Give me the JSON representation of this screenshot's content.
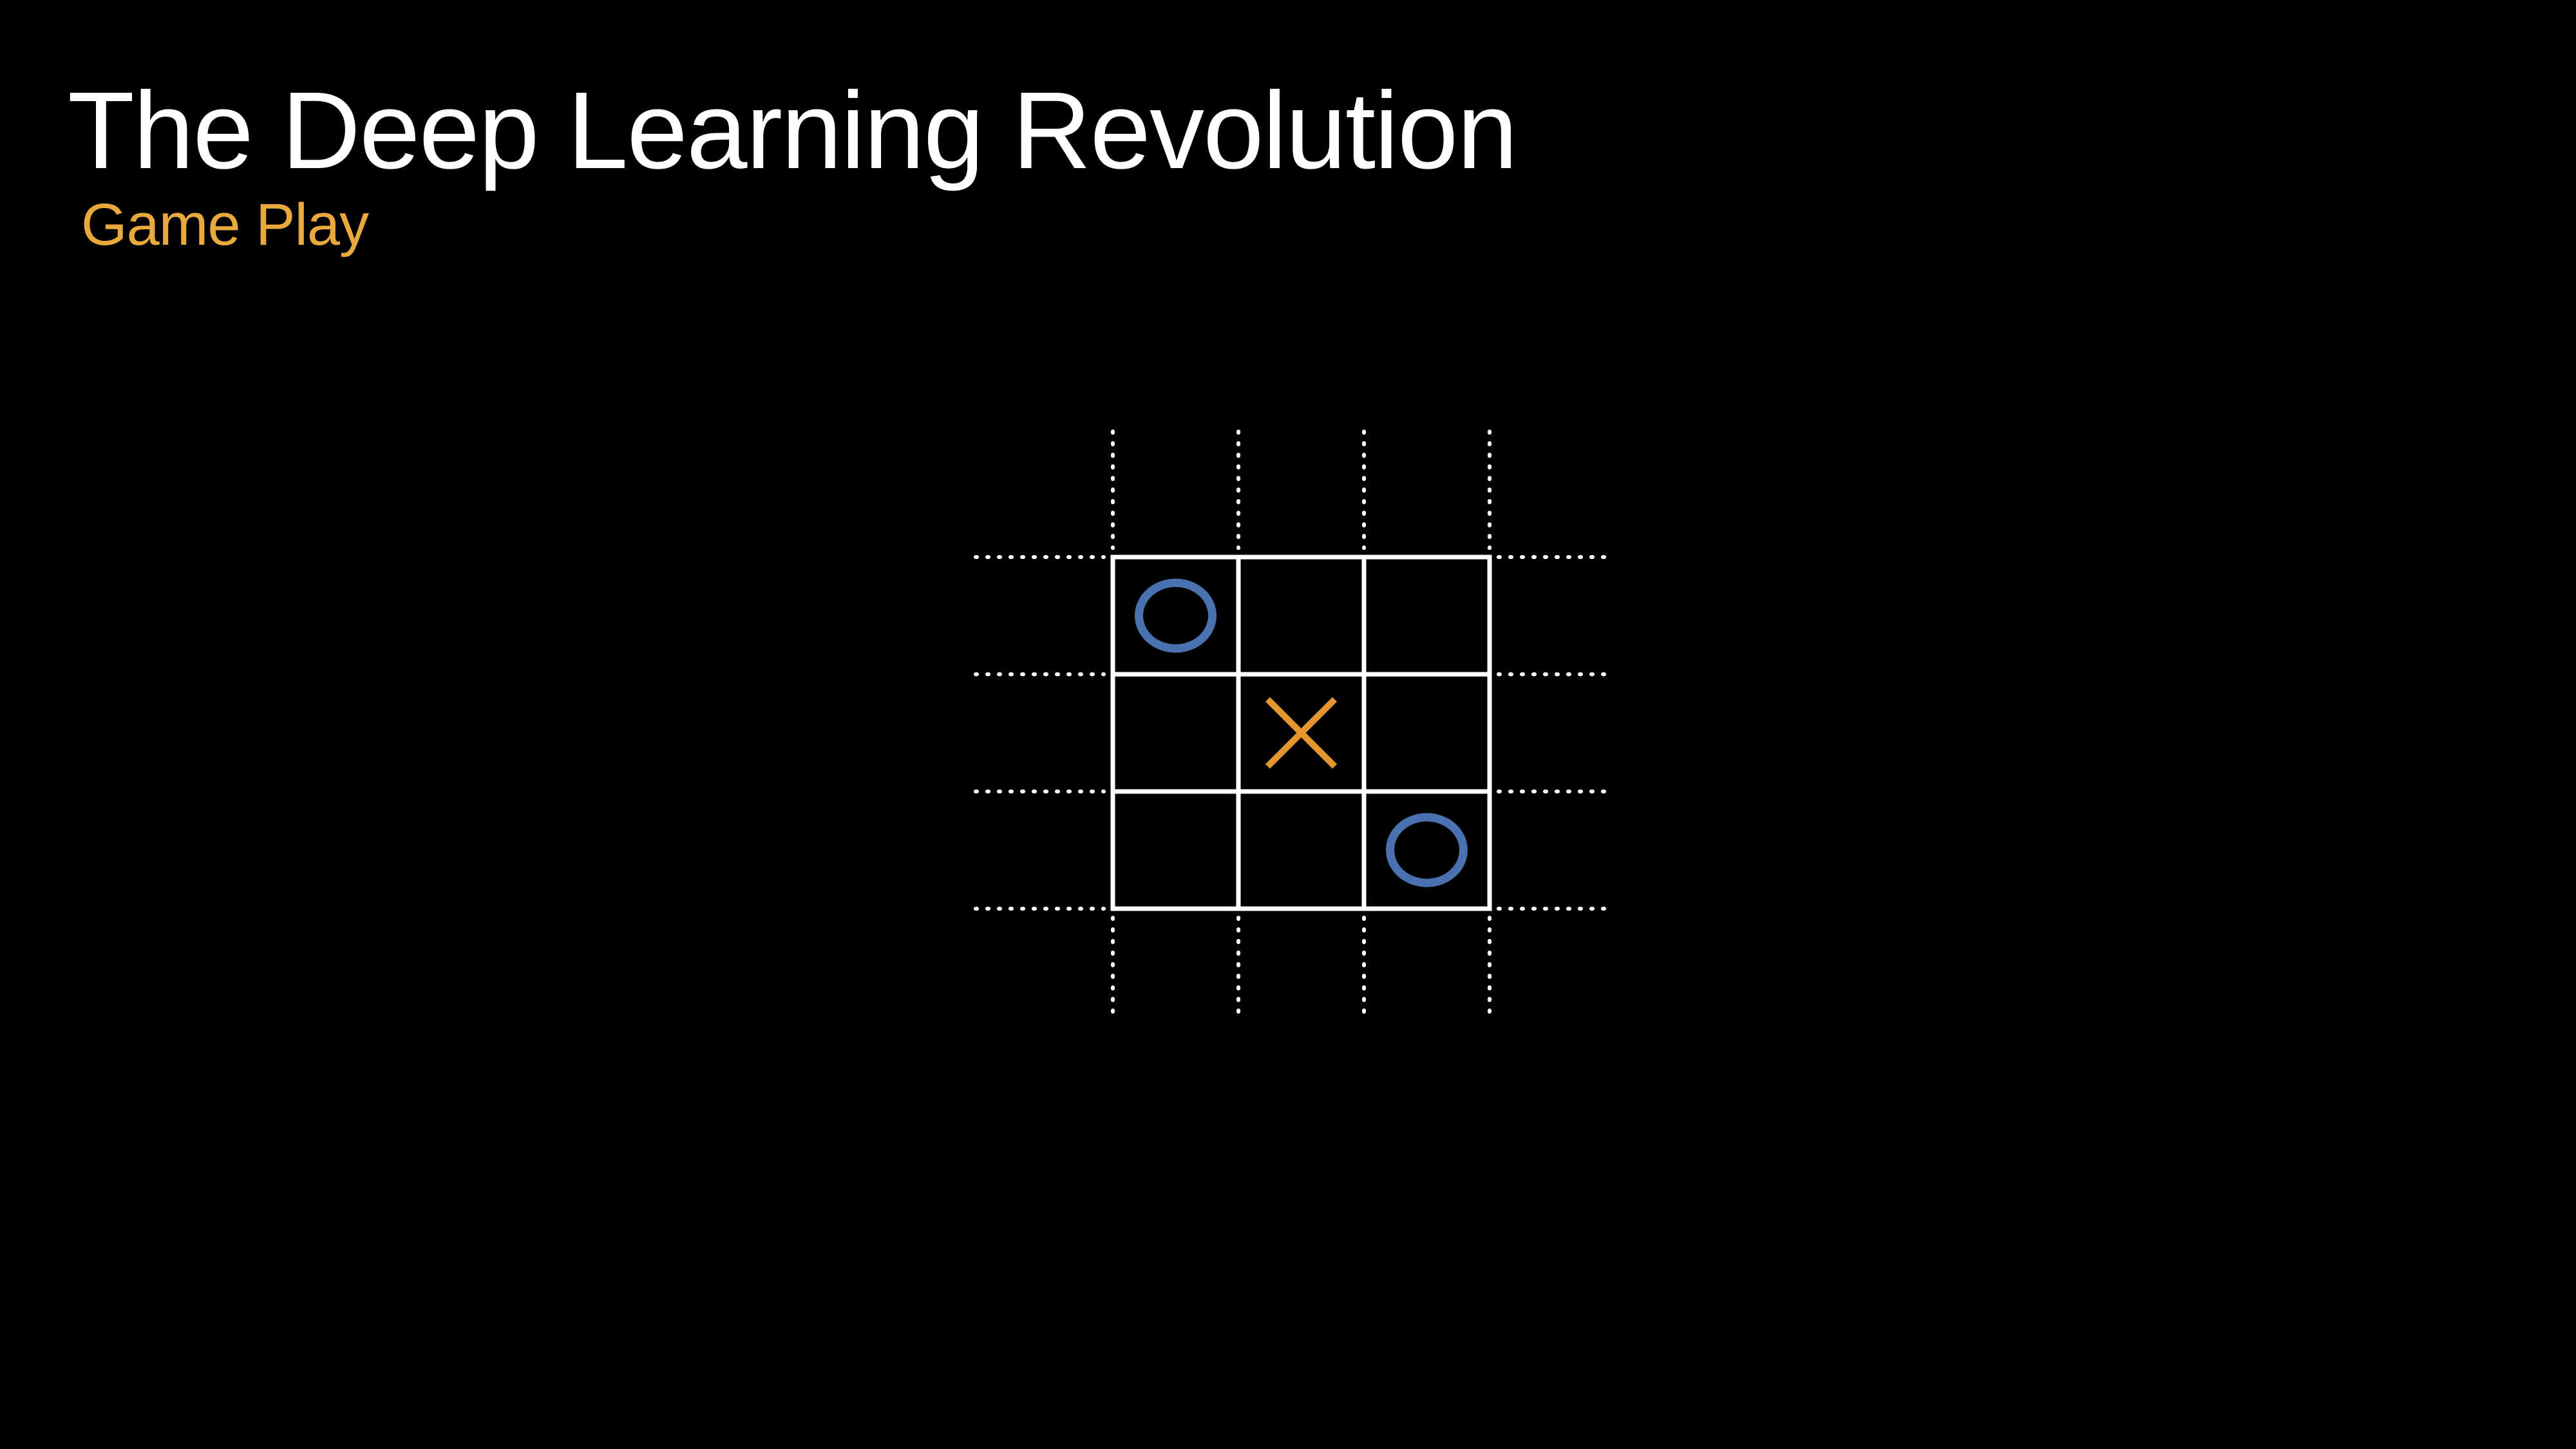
{
  "slide": {
    "title": "The Deep Learning Revolution",
    "subtitle": "Game Play"
  },
  "colors": {
    "background": "#000000",
    "title": "#ffffff",
    "subtitle": "#e9a93c",
    "grid": "#ffffff",
    "o_mark": "#4a72b0",
    "x_mark": "#e6962e"
  },
  "board": {
    "rows": 3,
    "cols": 3,
    "cells": [
      [
        "O",
        "",
        ""
      ],
      [
        "",
        "X",
        ""
      ],
      [
        "",
        "",
        "O"
      ]
    ]
  }
}
